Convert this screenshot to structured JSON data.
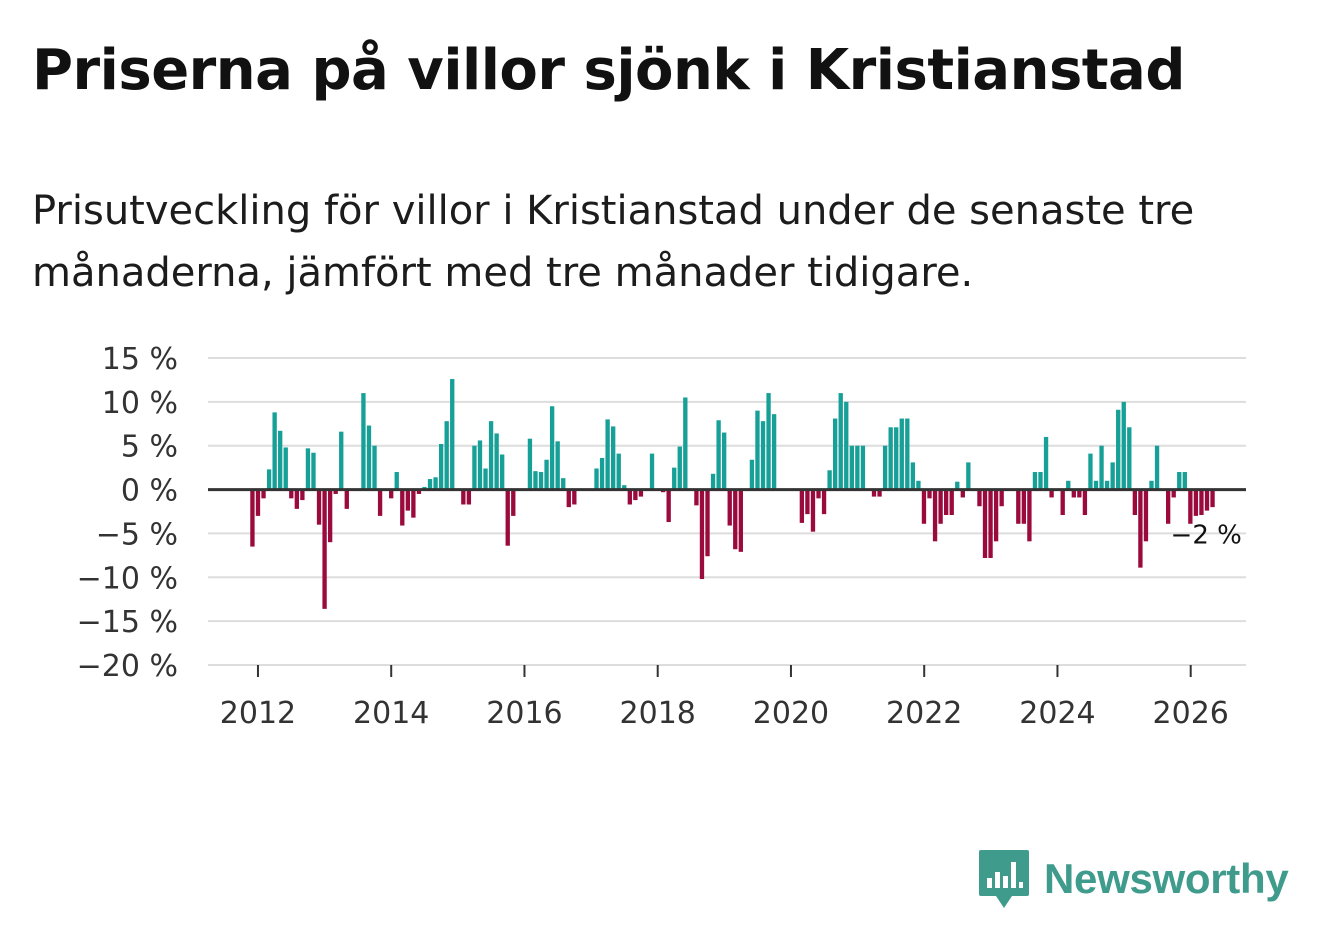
{
  "title": "Priserna på villor sjönk i Kristianstad",
  "subtitle": "Prisutveckling för villor i Kristianstad under de senaste tre månaderna, jämfört med tre månader tidigare.",
  "brand": {
    "name": "Newsworthy"
  },
  "colors": {
    "positive": "#16a097",
    "negative": "#9b0a3c",
    "grid": "#dddddd",
    "zero_line": "#333333"
  },
  "chart_data": {
    "type": "bar",
    "ylim": [
      -20,
      15
    ],
    "yticks": [
      15,
      10,
      5,
      0,
      -5,
      -10,
      -15,
      -20
    ],
    "ytick_labels": [
      "15 %",
      "10 %",
      "5 %",
      "0 %",
      "−5 %",
      "−10 %",
      "−15 %",
      "−20 %"
    ],
    "xticks": [
      "2012",
      "2014",
      "2016",
      "2018",
      "2020",
      "2022",
      "2024",
      "2026"
    ],
    "xlim": [
      2011.25,
      2026.83
    ],
    "end_label": "−2 %",
    "start": 2011.917,
    "step": 0.0833,
    "values": [
      -6.5,
      -3,
      -1,
      2.3,
      8.8,
      6.7,
      4.8,
      -1,
      -2.2,
      -1.2,
      4.7,
      4.2,
      -4,
      -13.6,
      -6,
      -0.5,
      6.6,
      -2.2,
      0,
      0,
      11,
      7.3,
      5,
      -3,
      0,
      -1,
      2,
      -4.1,
      -2.4,
      -3.2,
      -0.5,
      0.3,
      1.2,
      1.4,
      5.2,
      7.8,
      12.6,
      0,
      -1.7,
      -1.7,
      5,
      5.6,
      2.4,
      7.8,
      6.4,
      4,
      -6.4,
      -3,
      0,
      0,
      5.8,
      2.1,
      2,
      3.4,
      9.5,
      5.5,
      1.3,
      -2,
      -1.7,
      0,
      0,
      0,
      2.4,
      3.6,
      8,
      7.2,
      4.1,
      0.5,
      -1.7,
      -1.2,
      -0.8,
      0,
      4.1,
      0,
      -0.3,
      -3.7,
      2.5,
      4.9,
      10.5,
      0,
      -1.8,
      -10.2,
      -7.6,
      1.8,
      7.9,
      6.5,
      -4.1,
      -6.8,
      -7.1,
      0,
      3.4,
      9,
      7.8,
      11,
      8.6,
      0,
      0,
      0,
      0,
      -3.8,
      -2.8,
      -4.8,
      -1,
      -2.8,
      2.2,
      8.1,
      11,
      10,
      5,
      5,
      5,
      0,
      -0.8,
      -0.8,
      5,
      7.1,
      7.1,
      8.1,
      8.1,
      3.1,
      1,
      -3.9,
      -1,
      -5.9,
      -3.9,
      -2.9,
      -2.9,
      0.9,
      -0.9,
      3.1,
      0,
      -1.9,
      -7.8,
      -7.8,
      -5.9,
      -1.9,
      0,
      0,
      -3.9,
      -3.9,
      -5.9,
      2,
      2,
      6,
      -0.9,
      0,
      -2.9,
      1,
      -0.9,
      -0.9,
      -2.9,
      4.1,
      1,
      5,
      1,
      3.1,
      9.1,
      10,
      7.1,
      -2.9,
      -8.9,
      -5.9,
      1,
      5,
      0,
      -3.9,
      -0.9,
      2,
      2,
      -3.9,
      -3,
      -2.9,
      -2.4,
      -2
    ]
  }
}
